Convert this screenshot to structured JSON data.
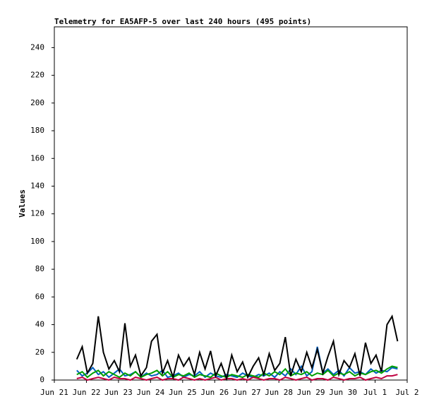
{
  "chart_data": {
    "type": "line",
    "title": "Telemetry for EA5AFP-5 over last 240 hours (495 points)",
    "y_label": "Values",
    "x": [
      21.7,
      21.87,
      22.03,
      22.2,
      22.37,
      22.53,
      22.7,
      22.87,
      23.03,
      23.2,
      23.37,
      23.53,
      23.7,
      23.87,
      24.03,
      24.2,
      24.37,
      24.53,
      24.7,
      24.87,
      25.03,
      25.2,
      25.37,
      25.53,
      25.7,
      25.87,
      26.03,
      26.2,
      26.37,
      26.53,
      26.7,
      26.87,
      27.03,
      27.2,
      27.37,
      27.53,
      27.7,
      27.87,
      28.03,
      28.2,
      28.37,
      28.53,
      28.7,
      28.87,
      29.03,
      29.2,
      29.37,
      29.53,
      29.7,
      29.87,
      30.03,
      30.2,
      30.37,
      30.53,
      30.7,
      30.87,
      31.03,
      31.2,
      31.37,
      31.53,
      31.7
    ],
    "series": [
      {
        "color": "#0060c0",
        "values": [
          7,
          3,
          5,
          9,
          4,
          6,
          2,
          5,
          8,
          3,
          4,
          6,
          2,
          5,
          3,
          4,
          7,
          2,
          3,
          5,
          2,
          4,
          3,
          6,
          2,
          5,
          3,
          2,
          4,
          3,
          2,
          5,
          3,
          2,
          4,
          3,
          5,
          2,
          6,
          3,
          8,
          4,
          10,
          3,
          6,
          24,
          5,
          8,
          4,
          7,
          3,
          9,
          5,
          6,
          4,
          8,
          5,
          7,
          6,
          9,
          8
        ]
      },
      {
        "color": "#00a000",
        "values": [
          4,
          6,
          2,
          5,
          7,
          3,
          6,
          4,
          2,
          5,
          3,
          6,
          2,
          4,
          5,
          7,
          3,
          6,
          2,
          4,
          3,
          5,
          2,
          4,
          3,
          2,
          5,
          3,
          2,
          4,
          3,
          2,
          4,
          3,
          2,
          5,
          3,
          6,
          4,
          8,
          3,
          5,
          4,
          6,
          3,
          5,
          4,
          7,
          3,
          5,
          4,
          6,
          3,
          5,
          4,
          6,
          7,
          5,
          8,
          10,
          9
        ]
      },
      {
        "color": "#c00040",
        "values": [
          1,
          2,
          0,
          1,
          2,
          1,
          0,
          2,
          1,
          1,
          0,
          2,
          1,
          0,
          1,
          2,
          0,
          1,
          1,
          0,
          2,
          1,
          0,
          1,
          0,
          1,
          2,
          0,
          1,
          1,
          0,
          1,
          0,
          2,
          1,
          0,
          1,
          1,
          0,
          2,
          1,
          0,
          1,
          2,
          0,
          1,
          1,
          0,
          2,
          1,
          0,
          1,
          1,
          2,
          0,
          1,
          2,
          1,
          3,
          3,
          4
        ]
      },
      {
        "color": "#000000",
        "values": [
          15,
          24,
          5,
          12,
          46,
          20,
          8,
          14,
          6,
          41,
          10,
          18,
          3,
          9,
          28,
          33,
          5,
          14,
          2,
          18,
          10,
          16,
          4,
          20,
          8,
          21,
          3,
          12,
          1,
          18,
          6,
          13,
          2,
          10,
          16,
          4,
          19,
          7,
          12,
          31,
          3,
          15,
          6,
          20,
          9,
          22,
          5,
          17,
          28,
          4,
          14,
          9,
          19,
          3,
          27,
          12,
          18,
          6,
          40,
          46,
          28
        ]
      }
    ],
    "xlim": [
      21,
      32
    ],
    "xticks": [
      {
        "value": 21,
        "label": "Jun 21"
      },
      {
        "value": 22,
        "label": "Jun 22"
      },
      {
        "value": 23,
        "label": "Jun 23"
      },
      {
        "value": 24,
        "label": "Jun 24"
      },
      {
        "value": 25,
        "label": "Jun 25"
      },
      {
        "value": 26,
        "label": "Jun 26"
      },
      {
        "value": 27,
        "label": "Jun 27"
      },
      {
        "value": 28,
        "label": "Jun 28"
      },
      {
        "value": 29,
        "label": "Jun 29"
      },
      {
        "value": 30,
        "label": "Jun 30"
      },
      {
        "value": 31,
        "label": "Jul 1"
      },
      {
        "value": 32,
        "label": "Jul 2"
      }
    ],
    "ylim": [
      0,
      255
    ],
    "yticks": [
      0,
      20,
      40,
      60,
      80,
      100,
      120,
      140,
      160,
      180,
      200,
      220,
      240
    ]
  }
}
